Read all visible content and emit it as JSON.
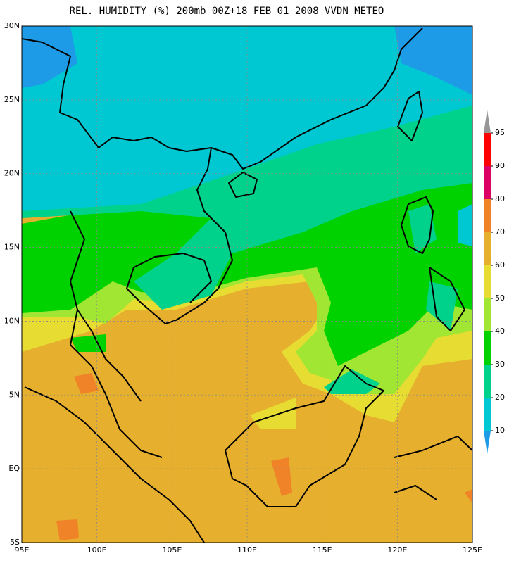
{
  "title": "REL. HUMIDITY (%) 200mb 00Z+18 FEB 01 2008 VVDN METEO",
  "map": {
    "lon_ticks": [
      {
        "value": 95,
        "label": "95E"
      },
      {
        "value": 100,
        "label": "100E"
      },
      {
        "value": 105,
        "label": "105E"
      },
      {
        "value": 110,
        "label": "110E"
      },
      {
        "value": 115,
        "label": "115E"
      },
      {
        "value": 120,
        "label": "120E"
      },
      {
        "value": 125,
        "label": "125E"
      }
    ],
    "lat_ticks": [
      {
        "value": 30,
        "label": "30N"
      },
      {
        "value": 25,
        "label": "25N"
      },
      {
        "value": 20,
        "label": "20N"
      },
      {
        "value": 15,
        "label": "15N"
      },
      {
        "value": 10,
        "label": "10N"
      },
      {
        "value": 5,
        "label": "5N"
      },
      {
        "value": 0,
        "label": "EQ"
      },
      {
        "value": -5,
        "label": "5S"
      }
    ],
    "lon_range": [
      95,
      125
    ],
    "lat_range": [
      -5,
      30
    ],
    "grid": true
  },
  "colorbar": {
    "levels": [
      10,
      20,
      30,
      40,
      50,
      60,
      70,
      80,
      90,
      95
    ],
    "colors": [
      "#1e9be6",
      "#00c8d2",
      "#00d28c",
      "#00d200",
      "#a0e632",
      "#e6dc32",
      "#e6af2d",
      "#f08228",
      "#dc0064",
      "#ff0000",
      "#969696"
    ]
  }
}
